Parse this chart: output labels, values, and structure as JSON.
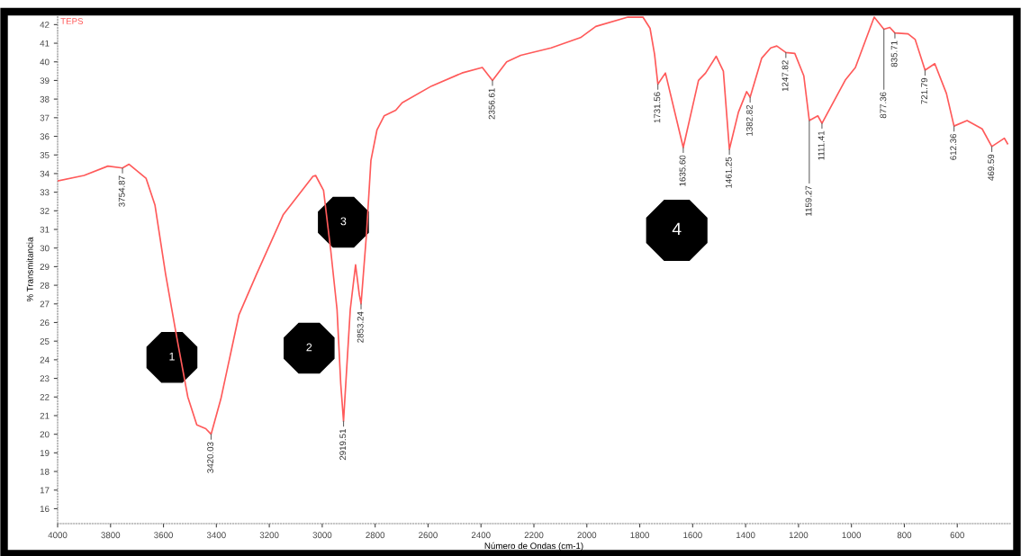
{
  "chart_data": {
    "type": "line",
    "xlabel": "Número de Ondas (cm-1)",
    "ylabel": "% Transmitancia",
    "xlim": [
      4000,
      400
    ],
    "ylim": [
      15.2,
      42.5
    ],
    "xticks": [
      4000,
      3800,
      3600,
      3400,
      3200,
      3000,
      2800,
      2600,
      2400,
      2200,
      2000,
      1800,
      1600,
      1400,
      1200,
      1000,
      800,
      600
    ],
    "yticks": [
      16,
      17,
      18,
      19,
      20,
      21,
      22,
      23,
      24,
      25,
      26,
      27,
      28,
      29,
      30,
      31,
      32,
      33,
      34,
      35,
      36,
      37,
      38,
      39,
      40,
      41,
      42
    ],
    "grid": false,
    "legend": false,
    "marker": "none",
    "line_style": "solid",
    "series": [
      {
        "name": "TEPS",
        "color": "#ff5a5a",
        "x": [
          4000,
          3900,
          3810,
          3754.87,
          3730,
          3666,
          3632,
          3592,
          3551,
          3508,
          3474,
          3440,
          3420.03,
          3383,
          3315,
          3248,
          3147,
          3035,
          3025,
          2995,
          2968,
          2944,
          2930,
          2919.51,
          2894,
          2874,
          2860,
          2853.24,
          2833,
          2816,
          2793,
          2766,
          2722,
          2698,
          2587,
          2472,
          2395,
          2356.61,
          2303,
          2250,
          2135,
          2024,
          1966,
          1845,
          1788,
          1761,
          1744,
          1731.56,
          1703,
          1635.6,
          1578,
          1551,
          1511,
          1484,
          1461.25,
          1427,
          1396,
          1382.82,
          1339,
          1305,
          1282,
          1247.82,
          1214,
          1180,
          1159.27,
          1127,
          1111.41,
          1022,
          985,
          914,
          877.36,
          855,
          835.71,
          786,
          759,
          721.79,
          685,
          641,
          612.36,
          563,
          506,
          469.59,
          422,
          410
        ],
        "values": [
          33.6,
          33.9,
          34.4,
          34.3,
          34.5,
          33.75,
          32.3,
          28.6,
          25.3,
          22.0,
          20.5,
          20.3,
          20.0,
          21.9,
          26.4,
          28.6,
          31.8,
          33.85,
          33.9,
          33.1,
          29.9,
          26.7,
          22.7,
          20.7,
          26.7,
          29.1,
          27.5,
          27.0,
          30.7,
          34.7,
          36.35,
          37.1,
          37.4,
          37.8,
          38.7,
          39.4,
          39.7,
          39.0,
          40.0,
          40.35,
          40.75,
          41.3,
          41.9,
          42.4,
          42.4,
          41.8,
          40.4,
          38.8,
          39.4,
          35.4,
          39.0,
          39.4,
          40.3,
          39.5,
          35.3,
          37.3,
          38.4,
          38.1,
          40.2,
          40.75,
          40.85,
          40.5,
          40.45,
          39.25,
          36.85,
          37.1,
          36.7,
          39.05,
          39.7,
          42.4,
          41.75,
          41.85,
          41.55,
          41.5,
          41.2,
          39.55,
          39.9,
          38.3,
          36.55,
          36.85,
          36.4,
          35.45,
          35.9,
          35.6
        ]
      }
    ],
    "annotations": [
      {
        "text": "3754.87",
        "x": 3754.87,
        "y": 34.3
      },
      {
        "text": "3420.03",
        "x": 3420.03,
        "y": 20.0
      },
      {
        "text": "2919.51",
        "x": 2919.51,
        "y": 20.7
      },
      {
        "text": "2853.24",
        "x": 2853.24,
        "y": 27.0
      },
      {
        "text": "2356.61",
        "x": 2356.61,
        "y": 39.0
      },
      {
        "text": "1731.56",
        "x": 1731.56,
        "y": 38.8
      },
      {
        "text": "1635.60",
        "x": 1635.6,
        "y": 35.4
      },
      {
        "text": "1461.25",
        "x": 1461.25,
        "y": 35.3
      },
      {
        "text": "1382.82",
        "x": 1382.82,
        "y": 38.1
      },
      {
        "text": "1247.82",
        "x": 1247.82,
        "y": 40.5
      },
      {
        "text": "1159.27",
        "x": 1159.27,
        "y": 36.85
      },
      {
        "text": "1111.41",
        "x": 1111.41,
        "y": 36.7
      },
      {
        "text": "877.36",
        "x": 877.36,
        "y": 41.75
      },
      {
        "text": "835.71",
        "x": 835.71,
        "y": 41.55
      },
      {
        "text": "721.79",
        "x": 721.79,
        "y": 39.55
      },
      {
        "text": "612.36",
        "x": 612.36,
        "y": 36.55
      },
      {
        "text": "469.59",
        "x": 469.59,
        "y": 35.45
      },
      "1",
      "2",
      "3",
      "4"
    ]
  }
}
